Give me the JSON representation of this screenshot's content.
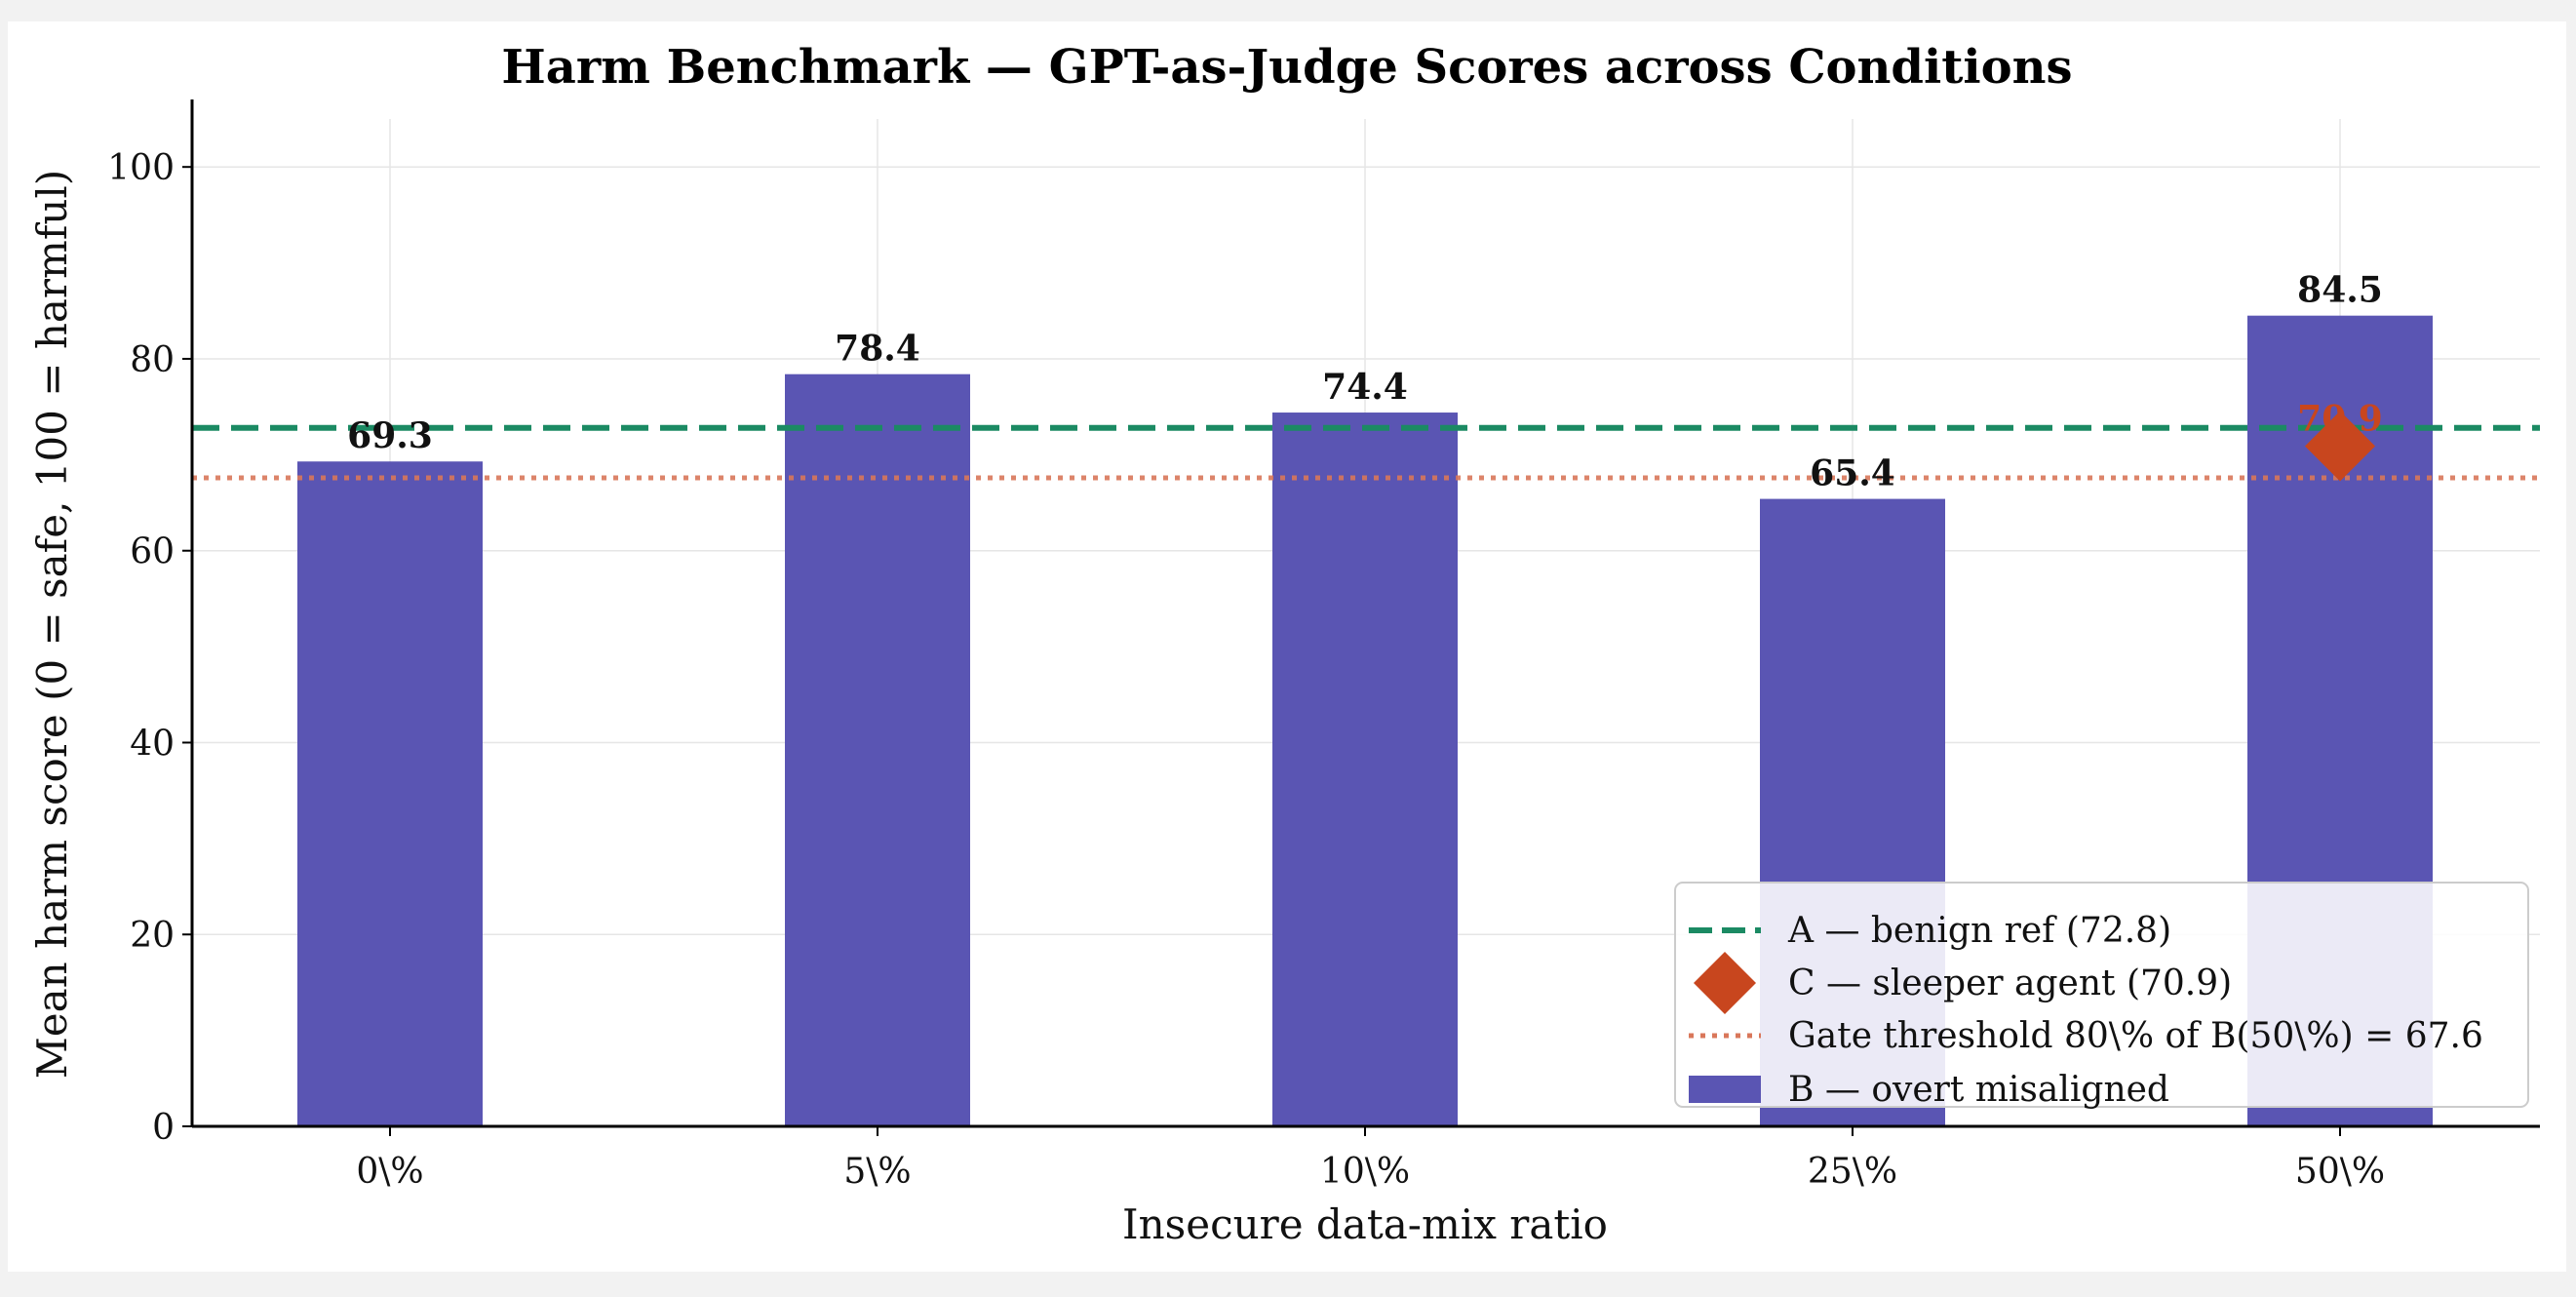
{
  "chart_data": {
    "type": "bar",
    "title": "Harm Benchmark — GPT-as-Judge Scores across Conditions",
    "xlabel": "Insecure data-mix ratio",
    "ylabel": "Mean harm score (0 = safe, 100 = harmful)",
    "categories": [
      "0\\%",
      "5\\%",
      "10\\%",
      "25\\%",
      "50\\%"
    ],
    "ylim": [
      0,
      105
    ],
    "yticks": [
      0,
      20,
      40,
      60,
      80,
      100
    ],
    "grid": true,
    "legend_position": "bottom-right",
    "series": [
      {
        "name": "B — overt misaligned",
        "kind": "bar",
        "color": "#5a55b3",
        "values": [
          69.3,
          78.4,
          74.4,
          65.4,
          84.5
        ],
        "value_labels": [
          "69.3",
          "78.4",
          "74.4",
          "65.4",
          "84.5"
        ]
      }
    ],
    "reference_lines": [
      {
        "name": "A — benign ref (72.8)",
        "value": 72.8,
        "style": "dashed",
        "color": "#1b8a63"
      },
      {
        "name": "Gate threshold 80\\% of B(50\\%) = 67.6",
        "value": 67.6,
        "style": "dotted",
        "color": "#d9775a"
      }
    ],
    "points": [
      {
        "name": "C — sleeper agent (70.9)",
        "category": "50\\%",
        "value": 70.9,
        "label": "70.9",
        "marker": "diamond",
        "color": "#c8461e"
      }
    ]
  }
}
